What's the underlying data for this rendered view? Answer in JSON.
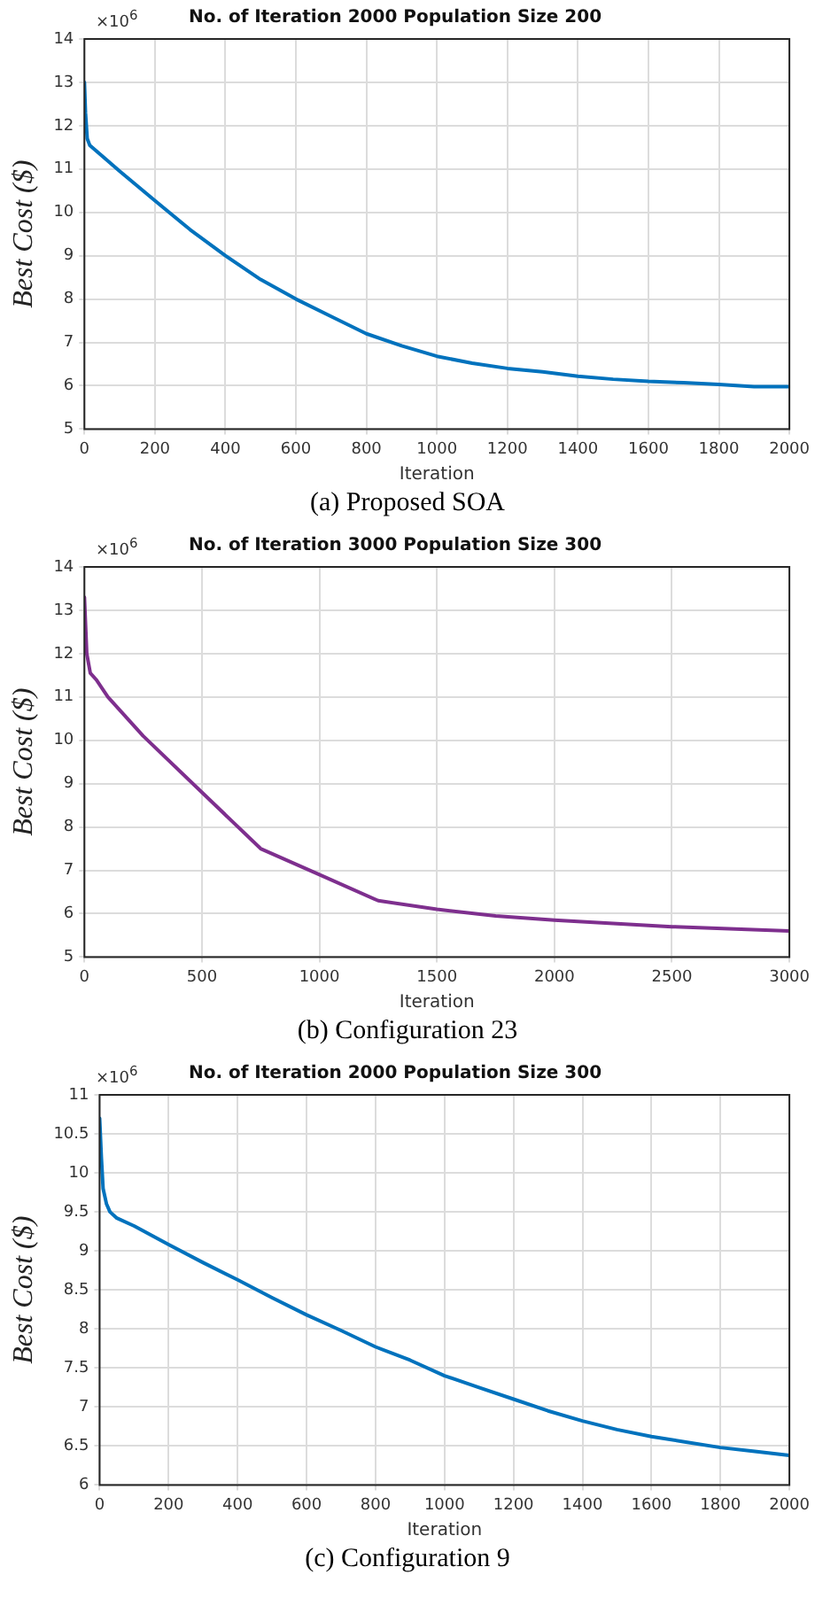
{
  "chart_data": [
    {
      "type": "line",
      "title": "No. of Iteration 2000 Population Size 200",
      "xlabel": "Iteration",
      "ylabel": "Best Cost ($)",
      "annotations": [
        "×10$^{6}$",
        "(a) Proposed SOA"
      ],
      "xlim": [
        0,
        2000
      ],
      "xticks": [
        0,
        200,
        400,
        600,
        800,
        1000,
        1200,
        1400,
        1600,
        1800,
        2000
      ],
      "ylim": [
        5,
        14
      ],
      "yticks": [
        5,
        6,
        7,
        8,
        9,
        10,
        11,
        12,
        13,
        14
      ],
      "grid": true,
      "marker": "none",
      "line_style": "solid",
      "series": [
        {
          "color": "#0072bd",
          "x": [
            0,
            3,
            8,
            15,
            50,
            100,
            200,
            300,
            400,
            500,
            600,
            700,
            800,
            900,
            1000,
            1100,
            1200,
            1300,
            1400,
            1500,
            1600,
            1700,
            1800,
            1900,
            2000
          ],
          "values": [
            13.0,
            12.3,
            11.7,
            11.55,
            11.3,
            10.95,
            10.27,
            9.6,
            9.0,
            8.45,
            8.0,
            7.6,
            7.2,
            6.92,
            6.68,
            6.52,
            6.4,
            6.32,
            6.22,
            6.15,
            6.1,
            6.07,
            6.03,
            5.98,
            5.98
          ]
        }
      ]
    },
    {
      "type": "line",
      "title": "No. of Iteration 3000 Population Size 300",
      "xlabel": "Iteration",
      "ylabel": "Best Cost ($)",
      "annotations": [
        "×10$^{6}$",
        "(b) Configuration 23"
      ],
      "xlim": [
        0,
        3000
      ],
      "xticks": [
        0,
        500,
        1000,
        1500,
        2000,
        2500,
        3000
      ],
      "ylim": [
        5,
        14
      ],
      "yticks": [
        5,
        6,
        7,
        8,
        9,
        10,
        11,
        12,
        13,
        14
      ],
      "grid": true,
      "marker": "none",
      "line_style": "solid",
      "series": [
        {
          "color": "#7e2f8e",
          "x": [
            0,
            10,
            25,
            50,
            100,
            250,
            500,
            750,
            1000,
            1250,
            1500,
            1750,
            2000,
            2500,
            3000
          ],
          "values": [
            13.3,
            12.0,
            11.55,
            11.4,
            11.0,
            10.1,
            8.8,
            7.5,
            6.9,
            6.3,
            6.1,
            5.95,
            5.85,
            5.7,
            5.6
          ]
        }
      ]
    },
    {
      "type": "line",
      "title": "No. of Iteration 2000 Population Size 300",
      "xlabel": "Iteration",
      "ylabel": "Best Cost ($)",
      "annotations": [
        "×10$^{6}$",
        "(c) Configuration 9"
      ],
      "xlim": [
        0,
        2000
      ],
      "xticks": [
        0,
        200,
        400,
        600,
        800,
        1000,
        1200,
        1400,
        1600,
        1800,
        2000
      ],
      "ylim": [
        6,
        11
      ],
      "yticks": [
        6,
        6.5,
        7,
        7.5,
        8,
        8.5,
        9,
        9.5,
        10,
        10.5,
        11
      ],
      "grid": true,
      "marker": "none",
      "line_style": "solid",
      "series": [
        {
          "color": "#0072bd",
          "x": [
            0,
            5,
            10,
            20,
            30,
            50,
            100,
            200,
            300,
            400,
            500,
            600,
            700,
            800,
            900,
            1000,
            1100,
            1200,
            1300,
            1400,
            1500,
            1600,
            1700,
            1800,
            1900,
            2000
          ],
          "values": [
            10.7,
            10.2,
            9.8,
            9.6,
            9.5,
            9.42,
            9.32,
            9.08,
            8.85,
            8.63,
            8.4,
            8.18,
            7.98,
            7.77,
            7.6,
            7.4,
            7.25,
            7.1,
            6.95,
            6.82,
            6.71,
            6.62,
            6.55,
            6.48,
            6.43,
            6.38
          ]
        }
      ]
    }
  ]
}
